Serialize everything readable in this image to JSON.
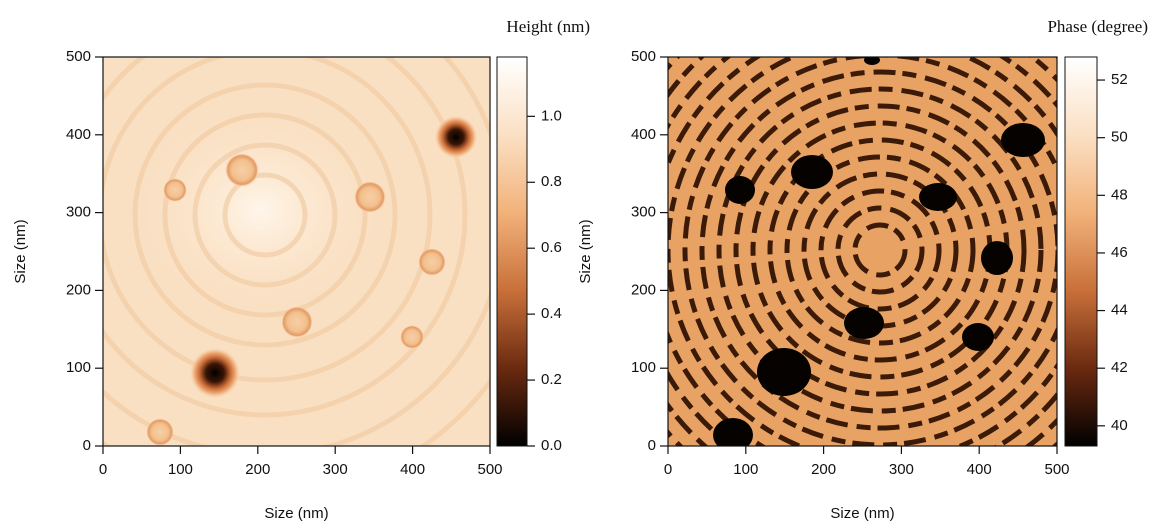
{
  "chart_data": [
    {
      "type": "image",
      "colorbar_label": "Height (nm)",
      "xlabel": "Size (nm)",
      "ylabel": "Size (nm)",
      "xlim": [
        0,
        500
      ],
      "ylim": [
        0,
        500
      ],
      "xticks": [
        0,
        100,
        200,
        300,
        400,
        500
      ],
      "yticks": [
        0,
        100,
        200,
        300,
        400,
        500
      ],
      "clim": [
        0,
        1.18
      ],
      "cticks": [
        {
          "value": 0,
          "label": "0.0"
        },
        {
          "value": 0.2,
          "label": "0.2"
        },
        {
          "value": 0.4,
          "label": "0.4"
        },
        {
          "value": 0.6,
          "label": "0.6"
        },
        {
          "value": 0.8,
          "label": "0.8"
        },
        {
          "value": 1.0,
          "label": "1.0"
        }
      ],
      "colormap": [
        "#000000",
        "#6b2a10",
        "#c9703a",
        "#f2b27a",
        "#fbe0c4",
        "#ffffff"
      ]
    },
    {
      "type": "image",
      "colorbar_label": "Phase (degree)",
      "xlabel": "Size (nm)",
      "ylabel": "Size (nm)",
      "xlim": [
        0,
        500
      ],
      "ylim": [
        0,
        500
      ],
      "xticks": [
        0,
        100,
        200,
        300,
        400,
        500
      ],
      "yticks": [
        0,
        100,
        200,
        300,
        400,
        500
      ],
      "clim": [
        39.3,
        52.8
      ],
      "cticks": [
        40,
        42,
        44,
        46,
        48,
        50,
        52
      ],
      "colormap": [
        "#000000",
        "#6b2a10",
        "#c9703a",
        "#f2b27a",
        "#fbe0c4",
        "#ffffff"
      ]
    }
  ]
}
